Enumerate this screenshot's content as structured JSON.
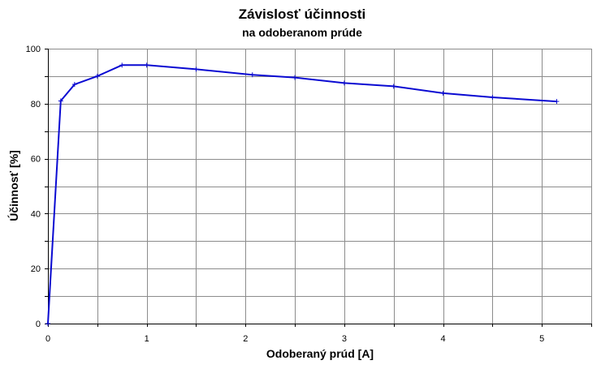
{
  "chart_data": {
    "type": "line",
    "title": "Závislosť účinnosti",
    "subtitle": "na odoberanom prúde",
    "xlabel": "Odoberaný prúd [A]",
    "ylabel": "Účinnosť [%]",
    "xlim": [
      0,
      5.5
    ],
    "ylim": [
      0,
      100
    ],
    "x_ticks": [
      0,
      1,
      2,
      3,
      4,
      5
    ],
    "y_ticks": [
      0,
      20,
      40,
      60,
      80,
      100
    ],
    "x_grid_step": 0.5,
    "y_grid_step": 10,
    "grid": true,
    "series": [
      {
        "color": "#0a0ad2",
        "points": [
          [
            0,
            0
          ],
          [
            0.13,
            81
          ],
          [
            0.27,
            87
          ],
          [
            0.5,
            90
          ],
          [
            0.75,
            94
          ],
          [
            1.0,
            94
          ],
          [
            1.5,
            92.5
          ],
          [
            2.07,
            90.5
          ],
          [
            2.5,
            89.5
          ],
          [
            3.0,
            87.5
          ],
          [
            3.5,
            86.3
          ],
          [
            4.0,
            83.8
          ],
          [
            4.5,
            82.3
          ],
          [
            5.15,
            80.8
          ]
        ]
      }
    ]
  }
}
